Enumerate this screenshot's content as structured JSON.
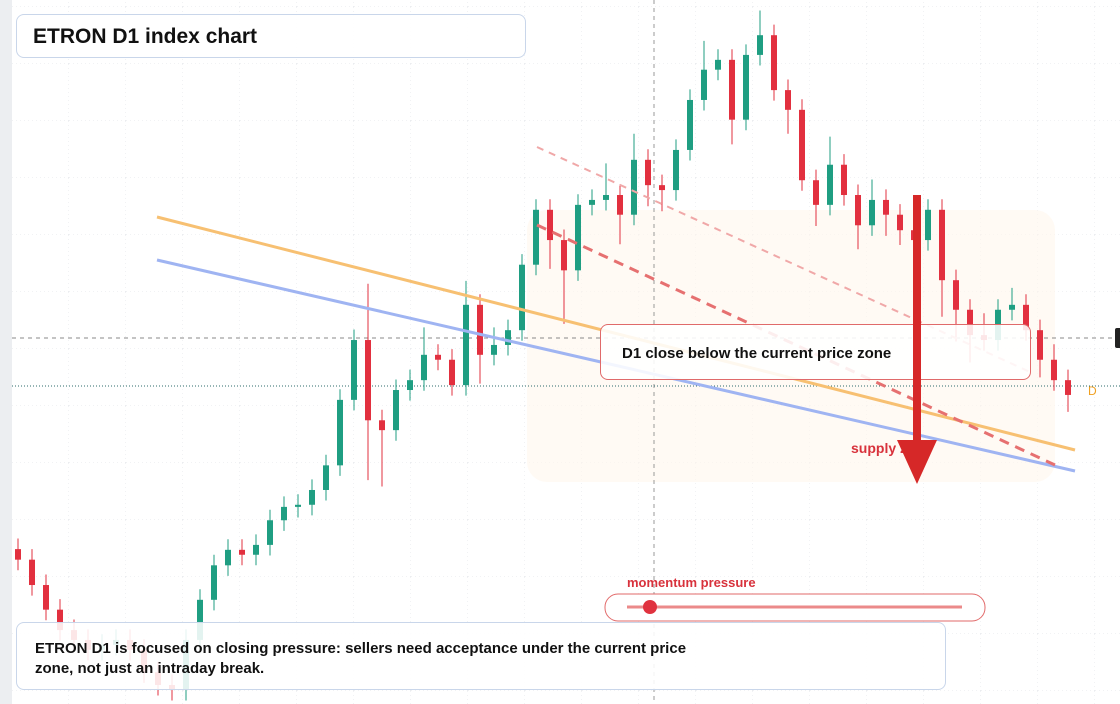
{
  "chart_data": {
    "type": "candlestick",
    "title": "ETRON D1 index chart",
    "callout": "D1 close below the current price zone",
    "zone_label": "supply zone",
    "indicator_label": "momentum pressure",
    "marker_label": "D",
    "note": "ETRON D1 is focused on closing pressure: sellers need acceptance under the current price zone, not just an intraday break.",
    "up_color": "#1f9e82",
    "down_color": "#e2303f",
    "ylim": [
      0,
      100
    ],
    "open": [
      22.0,
      20.5,
      16.9,
      13.4,
      10.5,
      9.1,
      7.7,
      8.4,
      9.1,
      7.7,
      4.5,
      2.7,
      2.0,
      9.1,
      14.8,
      19.7,
      21.9,
      21.2,
      22.6,
      26.1,
      28.0,
      28.3,
      30.4,
      33.9,
      43.2,
      51.7,
      40.3,
      38.9,
      44.6,
      46.0,
      49.6,
      48.9,
      45.3,
      56.7,
      49.6,
      51.0,
      53.1,
      62.4,
      70.2,
      65.9,
      61.6,
      70.9,
      71.6,
      72.3,
      69.5,
      77.3,
      73.7,
      73.0,
      78.7,
      85.8,
      90.1,
      91.5,
      83.0,
      92.2,
      95.0,
      87.2,
      84.4,
      74.4,
      70.9,
      76.6,
      72.3,
      68.0,
      71.6,
      69.5,
      67.3,
      65.9,
      70.2,
      60.2,
      56.0,
      52.4,
      51.7,
      56.0,
      56.7,
      53.1,
      48.9,
      46.0
    ],
    "high": [
      23.5,
      22.0,
      18.4,
      14.9,
      12.0,
      10.6,
      9.9,
      10.6,
      10.6,
      9.2,
      6.0,
      4.2,
      10.6,
      16.3,
      21.2,
      23.4,
      23.4,
      24.1,
      27.6,
      29.5,
      29.8,
      31.9,
      35.4,
      44.7,
      53.2,
      59.7,
      41.8,
      46.1,
      47.5,
      53.5,
      51.1,
      50.4,
      60.1,
      58.2,
      53.5,
      54.6,
      63.9,
      71.7,
      71.7,
      67.4,
      72.4,
      73.1,
      76.8,
      73.8,
      81.0,
      78.8,
      75.2,
      80.2,
      87.3,
      94.2,
      93.0,
      93.0,
      93.7,
      98.5,
      96.5,
      88.7,
      85.9,
      75.9,
      80.6,
      78.1,
      73.8,
      74.5,
      73.1,
      71.0,
      68.8,
      71.7,
      71.7,
      61.7,
      57.5,
      55.5,
      57.5,
      59.1,
      58.2,
      54.6,
      51.1,
      47.5
    ],
    "low": [
      19.0,
      15.4,
      11.9,
      9.0,
      7.6,
      6.2,
      6.2,
      6.9,
      6.2,
      3.0,
      1.2,
      0.5,
      0.5,
      7.6,
      13.3,
      18.2,
      19.7,
      19.7,
      21.1,
      24.6,
      26.5,
      26.8,
      28.9,
      32.4,
      41.7,
      31.8,
      30.9,
      37.4,
      43.1,
      44.5,
      47.4,
      43.8,
      43.8,
      45.5,
      48.1,
      49.5,
      51.6,
      60.9,
      61.8,
      54.0,
      60.1,
      69.4,
      70.1,
      65.3,
      68.0,
      70.7,
      70.0,
      71.5,
      77.2,
      84.3,
      88.6,
      79.5,
      81.5,
      90.7,
      85.7,
      81.0,
      72.9,
      67.9,
      69.4,
      70.8,
      64.6,
      66.5,
      66.5,
      65.2,
      63.0,
      64.4,
      55.0,
      51.5,
      48.5,
      50.2,
      50.2,
      54.5,
      51.6,
      46.4,
      44.5,
      41.5
    ],
    "close": [
      20.5,
      16.9,
      13.4,
      10.5,
      9.1,
      7.7,
      8.4,
      9.1,
      7.7,
      4.5,
      2.7,
      2.0,
      9.1,
      14.8,
      19.7,
      21.9,
      21.2,
      22.6,
      26.1,
      28.0,
      28.3,
      30.4,
      33.9,
      43.2,
      51.7,
      40.3,
      38.9,
      44.6,
      46.0,
      49.6,
      48.9,
      45.3,
      56.7,
      49.6,
      51.0,
      53.1,
      62.4,
      70.2,
      65.9,
      61.6,
      70.9,
      71.6,
      72.3,
      69.5,
      77.3,
      73.7,
      73.0,
      78.7,
      85.8,
      90.1,
      91.5,
      83.0,
      92.2,
      95.0,
      87.2,
      84.4,
      74.4,
      70.9,
      76.6,
      72.3,
      68.0,
      71.6,
      69.5,
      67.3,
      65.9,
      70.2,
      60.2,
      56.0,
      52.4,
      51.7,
      56.0,
      56.7,
      53.1,
      48.9,
      46.0,
      43.9
    ]
  }
}
